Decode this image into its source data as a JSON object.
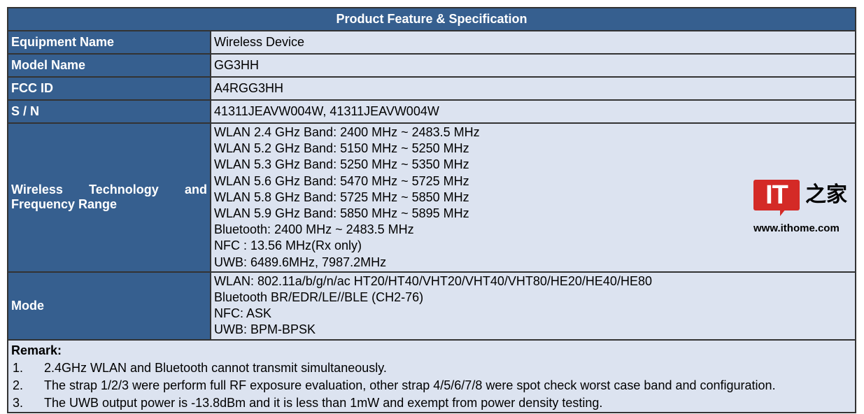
{
  "title": "Product Feature & Specification",
  "rows": [
    {
      "label": "Equipment Name",
      "values": [
        "Wireless Device"
      ]
    },
    {
      "label": "Model Name",
      "values": [
        "GG3HH"
      ]
    },
    {
      "label": "FCC ID",
      "values": [
        "A4RGG3HH"
      ]
    },
    {
      "label": "S / N",
      "values": [
        "41311JEAVW004W, 41311JEAVW004W"
      ]
    },
    {
      "label_lines": [
        "Wireless Technology and",
        "Frequency Range"
      ],
      "values": [
        "WLAN 2.4 GHz Band: 2400 MHz ~ 2483.5 MHz",
        "WLAN 5.2 GHz Band: 5150 MHz ~ 5250 MHz",
        "WLAN 5.3 GHz Band: 5250 MHz ~ 5350 MHz",
        "WLAN 5.6 GHz Band: 5470 MHz ~ 5725 MHz",
        "WLAN 5.8 GHz Band: 5725 MHz ~ 5850 MHz",
        "WLAN 5.9 GHz Band: 5850 MHz ~ 5895 MHz",
        "Bluetooth: 2400 MHz ~ 2483.5 MHz",
        "NFC : 13.56 MHz(Rx only)",
        "UWB: 6489.6MHz, 7987.2MHz"
      ]
    },
    {
      "label": "Mode",
      "values": [
        "WLAN: 802.11a/b/g/n/ac HT20/HT40/VHT20/VHT40/VHT80/HE20/HE40/HE80",
        "Bluetooth BR/EDR/LE//BLE (CH2-76)",
        "NFC: ASK",
        "UWB: BPM-BPSK"
      ]
    }
  ],
  "remark": {
    "title": "Remark:",
    "items": [
      {
        "num": "1.",
        "text": "2.4GHz WLAN and Bluetooth cannot transmit simultaneously."
      },
      {
        "num": "2.",
        "text": "The strap 1/2/3 were perform full RF exposure evaluation, other strap 4/5/6/7/8 were spot check worst case band and configuration."
      },
      {
        "num": "3.",
        "text": "The UWB output power is -13.8dBm and it is less than 1mW and exempt from power density testing."
      }
    ]
  },
  "watermark": {
    "logo_text": "IT之家",
    "url": "www.ithome.com",
    "color": "#d42a26"
  },
  "colors": {
    "header_bg": "#365f8f",
    "cell_bg": "#dce3f0"
  }
}
